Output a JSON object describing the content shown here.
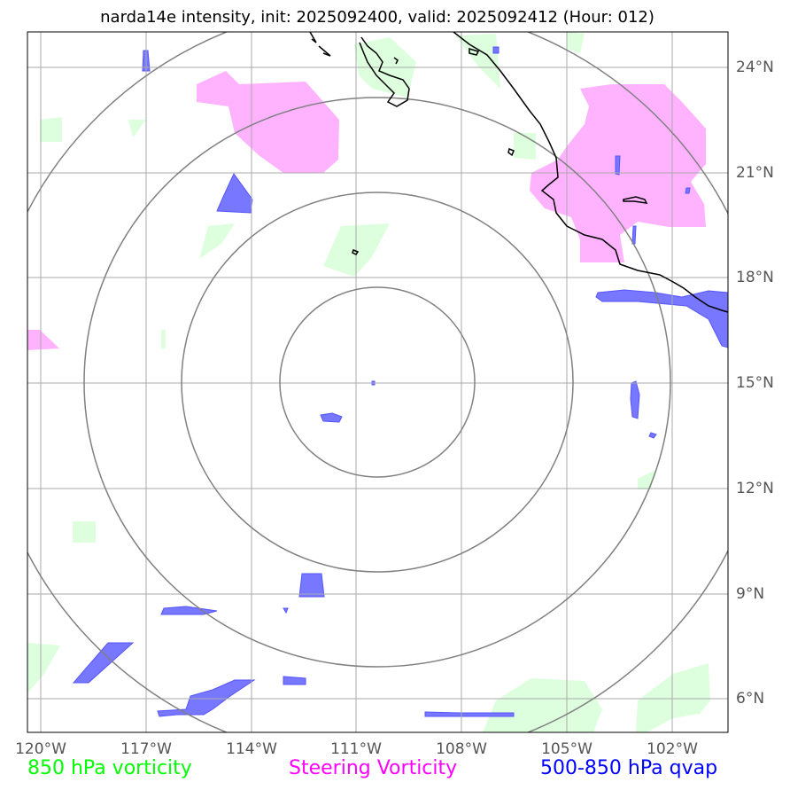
{
  "title": "narda14e intensity, init: 2025092400, valid: 2025092412 (Hour: 012)",
  "axes": {
    "lon_labels": [
      "120°W",
      "117°W",
      "114°W",
      "111°W",
      "108°W",
      "105°W",
      "102°W"
    ],
    "lat_labels": [
      "24°N",
      "21°N",
      "18°N",
      "15°N",
      "12°N",
      "9°N",
      "6°N"
    ]
  },
  "legend": {
    "vort850": "850 hPa vorticity",
    "steering": "Steering Vorticity",
    "qvap": "500-850 hPa qvap"
  },
  "colors": {
    "vort850": "#00ff00",
    "vort850_fill": "#ddffdd",
    "steering": "#ff00ff",
    "steering_fill": "#ffb3ff",
    "qvap": "#0000ff",
    "qvap_fill": "#7777ff",
    "grid": "#aaaaaa",
    "rings": "#808080",
    "coast": "#000000"
  }
}
